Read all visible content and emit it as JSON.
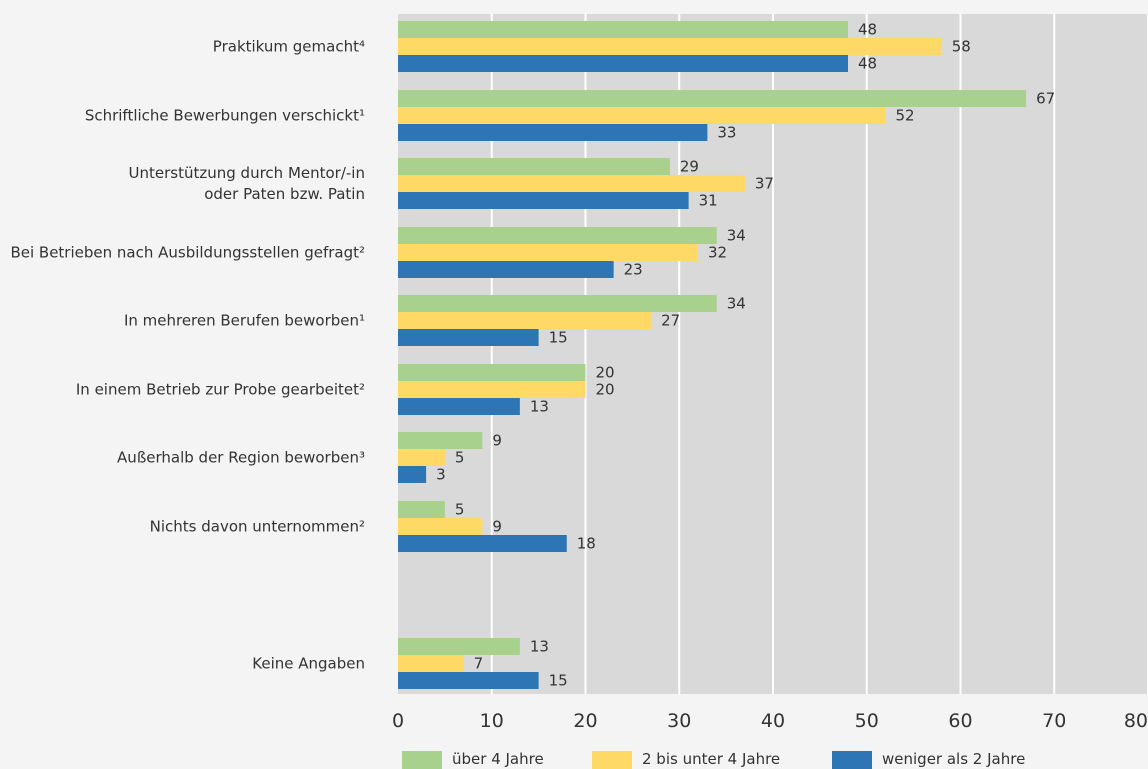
{
  "chart_data": {
    "type": "bar",
    "orientation": "horizontal",
    "categories": [
      "Praktikum gemacht⁴",
      "Schriftliche Bewerbungen verschickt¹",
      "Unterstützung durch Mentor/-in\noder Paten bzw. Patin",
      "Bei Betrieben nach Ausbildungsstellen gefragt²",
      "In mehreren Berufen beworben¹",
      "In einem Betrieb zur Probe gearbeitet²",
      "Außerhalb der Region beworben³",
      "Nichts davon unternommen²",
      "Keine Angaben"
    ],
    "series": [
      {
        "name": "über 4 Jahre",
        "color": "#a9d18e",
        "values": [
          48,
          67,
          29,
          34,
          34,
          20,
          9,
          5,
          13
        ]
      },
      {
        "name": "2 bis unter 4 Jahre",
        "color": "#ffd966",
        "values": [
          58,
          52,
          37,
          32,
          27,
          20,
          5,
          9,
          7
        ]
      },
      {
        "name": "weniger als 2 Jahre",
        "color": "#2e75b6",
        "values": [
          48,
          33,
          31,
          23,
          15,
          13,
          3,
          18,
          15
        ]
      }
    ],
    "xlim": [
      0,
      80
    ],
    "xticks": [
      0,
      10,
      20,
      30,
      40,
      50,
      60,
      70,
      80
    ],
    "grid": true,
    "legend_position": "bottom",
    "title": "",
    "xlabel": "",
    "ylabel": ""
  }
}
